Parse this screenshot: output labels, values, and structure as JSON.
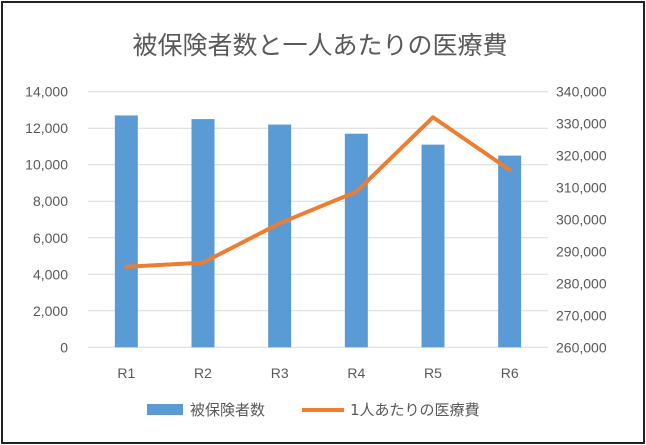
{
  "chart_data": {
    "type": "bar+line",
    "title": "被保険者数と一人あたりの医療費",
    "categories": [
      "R1",
      "R2",
      "R3",
      "R4",
      "R5",
      "R6"
    ],
    "series": [
      {
        "name": "被保険者数",
        "type": "bar",
        "axis": "left",
        "color": "#5B9BD5",
        "values": [
          12700,
          12500,
          12200,
          11700,
          11100,
          10500
        ]
      },
      {
        "name": "1人あたりの医療費",
        "type": "line",
        "axis": "right",
        "color": "#ED7D31",
        "values": [
          285200,
          286500,
          298800,
          308700,
          332000,
          315500
        ]
      }
    ],
    "y_left": {
      "min": 0,
      "max": 14000,
      "ticks": [
        "0",
        "2,000",
        "4,000",
        "6,000",
        "8,000",
        "10,000",
        "12,000",
        "14,000"
      ]
    },
    "y_right": {
      "min": 260000,
      "max": 340000,
      "ticks": [
        "260,000",
        "270,000",
        "280,000",
        "290,000",
        "300,000",
        "310,000",
        "320,000",
        "330,000",
        "340,000"
      ]
    },
    "grid": true,
    "legend": "bottom"
  }
}
